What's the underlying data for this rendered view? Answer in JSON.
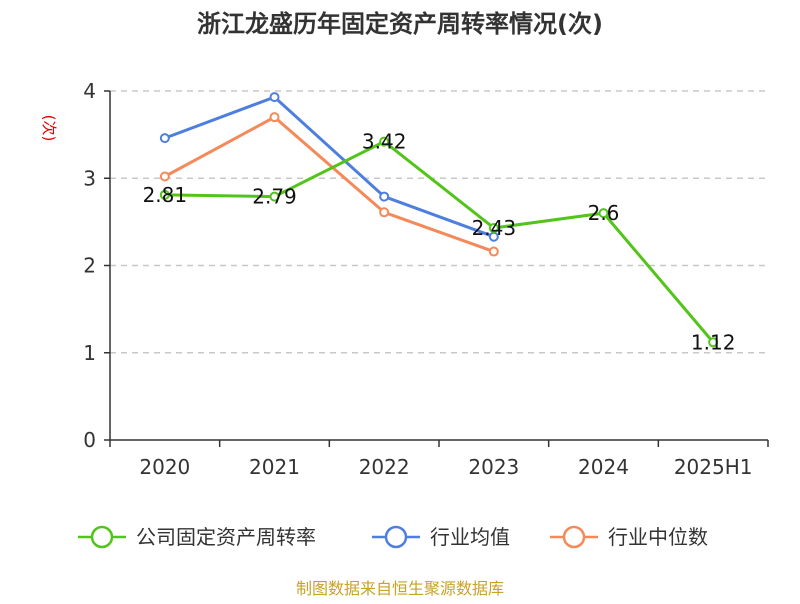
{
  "chart_data": {
    "type": "line",
    "title": "浙江龙盛历年固定资产周转率情况(次)",
    "ylabel": "(次)",
    "xlabel": "",
    "categories": [
      "2020",
      "2021",
      "2022",
      "2023",
      "2024",
      "2025H1"
    ],
    "ylim": [
      0,
      4
    ],
    "yticks": [
      "0",
      "1",
      "2",
      "3",
      "4"
    ],
    "grid": true,
    "legend_position": "bottom",
    "series": [
      {
        "name": "公司固定资产周转率",
        "color": "#52c41a",
        "values": [
          2.81,
          2.79,
          3.42,
          2.43,
          2.6,
          1.12
        ],
        "labels": [
          "2.81",
          "2.79",
          "3.42",
          "2.43",
          "2.6",
          "1.12"
        ]
      },
      {
        "name": "行业均值",
        "color": "#4e7fde",
        "values": [
          3.46,
          3.93,
          2.79,
          2.33,
          null,
          null
        ]
      },
      {
        "name": "行业中位数",
        "color": "#f48a5a",
        "values": [
          3.02,
          3.7,
          2.61,
          2.16,
          null,
          null
        ]
      }
    ],
    "source": "制图数据来自恒生聚源数据库"
  }
}
